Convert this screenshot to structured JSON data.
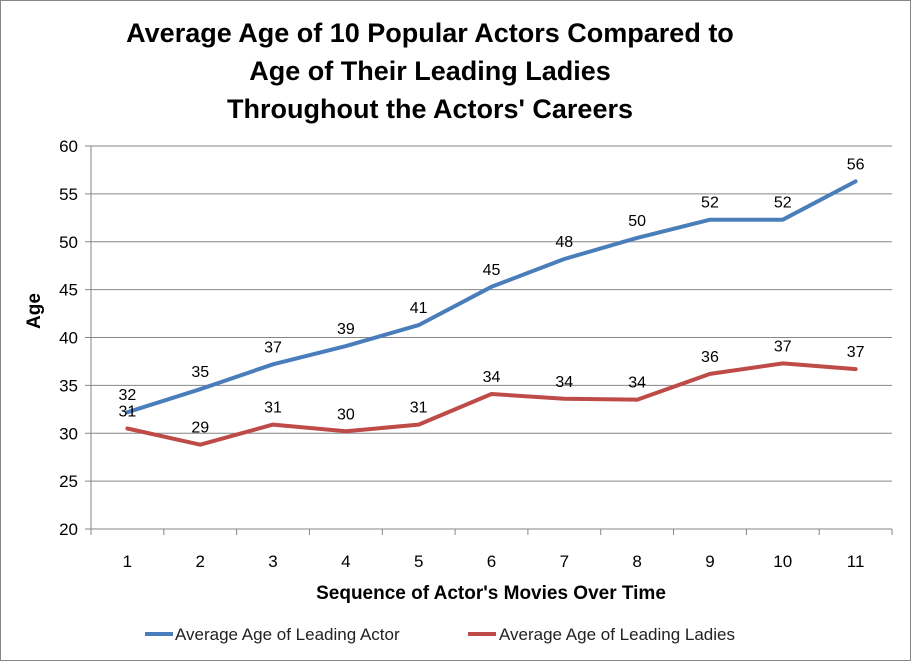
{
  "chart_data": {
    "type": "line",
    "title_lines": [
      "Average Age of 10 Popular Actors Compared to",
      "Age of Their Leading Ladies",
      "Throughout the Actors' Careers"
    ],
    "xlabel": "Sequence of Actor's Movies Over Time",
    "ylabel": "Age",
    "categories": [
      "1",
      "2",
      "3",
      "4",
      "5",
      "6",
      "7",
      "8",
      "9",
      "10",
      "11"
    ],
    "ylim": [
      20,
      60
    ],
    "yticks": [
      20,
      25,
      30,
      35,
      40,
      45,
      50,
      55,
      60
    ],
    "grid": true,
    "legend_position": "bottom",
    "series": [
      {
        "name": "Average Age of Leading Actor",
        "color": "#4a7ebb",
        "values": [
          32.2,
          34.6,
          37.2,
          39.1,
          41.3,
          45.3,
          48.2,
          50.4,
          52.3,
          52.3,
          56.3
        ],
        "labels": [
          "32",
          "35",
          "37",
          "39",
          "41",
          "45",
          "48",
          "50",
          "52",
          "52",
          "56"
        ]
      },
      {
        "name": "Average Age of Leading Ladies",
        "color": "#be4b48",
        "values": [
          30.5,
          28.8,
          30.9,
          30.2,
          30.9,
          34.1,
          33.6,
          33.5,
          36.2,
          37.3,
          36.7
        ],
        "labels": [
          "31",
          "29",
          "31",
          "30",
          "31",
          "34",
          "34",
          "34",
          "36",
          "37",
          "37"
        ]
      }
    ]
  }
}
